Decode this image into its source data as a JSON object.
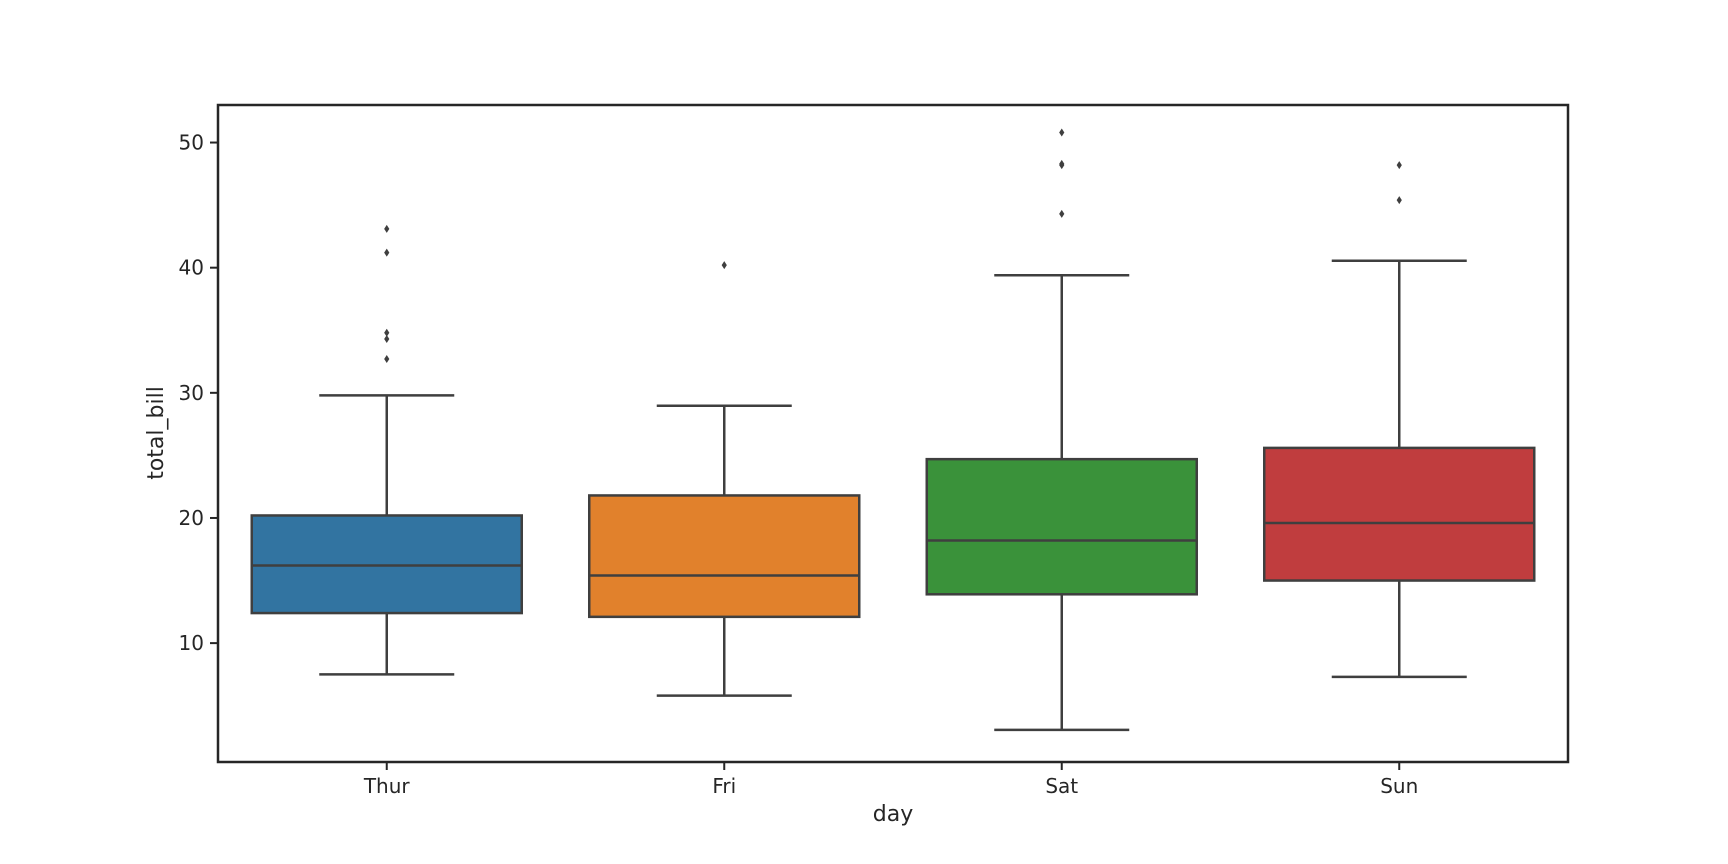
{
  "chart_data": {
    "type": "box",
    "title": "",
    "xlabel": "day",
    "ylabel": "total_bill",
    "ylim": [
      0.5,
      53.0
    ],
    "yticks": [
      10,
      20,
      30,
      40,
      50
    ],
    "grid": false,
    "legend": "none",
    "categories": [
      "Thur",
      "Fri",
      "Sat",
      "Sun"
    ],
    "boxes": [
      {
        "category": "Thur",
        "color": "#3274a1",
        "whisker_low": 7.5,
        "q1": 12.4,
        "median": 16.2,
        "q3": 20.2,
        "whisker_high": 29.8,
        "outliers": [
          32.7,
          34.3,
          34.8,
          41.2,
          43.1
        ]
      },
      {
        "category": "Fri",
        "color": "#e1812c",
        "whisker_low": 5.8,
        "q1": 12.1,
        "median": 15.4,
        "q3": 21.8,
        "whisker_high": 28.97,
        "outliers": [
          40.2
        ]
      },
      {
        "category": "Sat",
        "color": "#3a923a",
        "whisker_low": 3.07,
        "q1": 13.9,
        "median": 18.2,
        "q3": 24.7,
        "whisker_high": 39.4,
        "outliers": [
          44.3,
          48.2,
          48.3,
          50.8
        ]
      },
      {
        "category": "Sun",
        "color": "#c03d3e",
        "whisker_low": 7.3,
        "q1": 15.0,
        "median": 19.6,
        "q3": 25.6,
        "whisker_high": 40.55,
        "outliers": [
          45.4,
          48.2
        ]
      }
    ],
    "line_color": "#3f3f3f"
  }
}
